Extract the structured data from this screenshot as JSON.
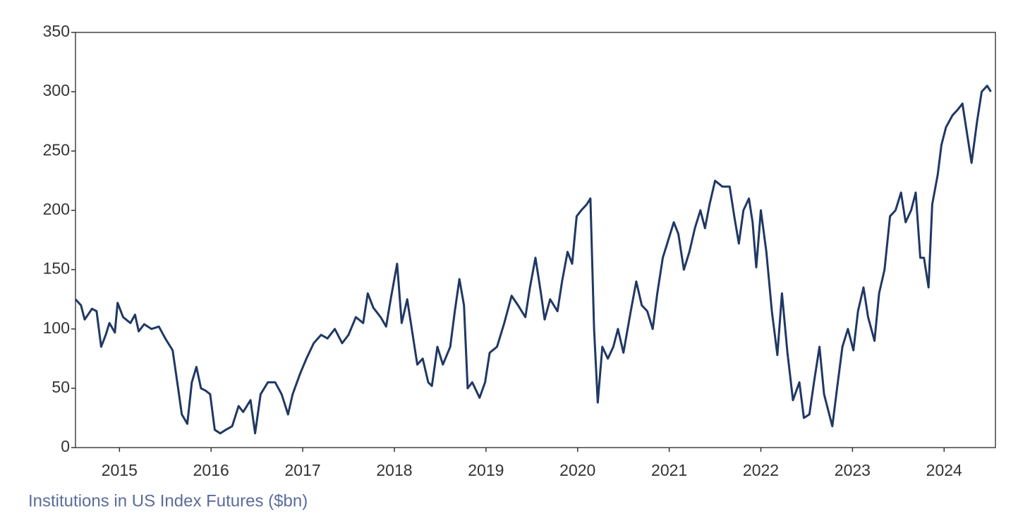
{
  "chart_data": {
    "type": "line",
    "xlabel": "Institutions in US Index Futures ($bn)",
    "x": [
      2014.52,
      2014.58,
      2014.62,
      2014.7,
      2014.75,
      2014.8,
      2014.85,
      2014.89,
      2014.95,
      2014.98,
      2015.04,
      2015.12,
      2015.17,
      2015.21,
      2015.27,
      2015.35,
      2015.43,
      2015.5,
      2015.58,
      2015.64,
      2015.68,
      2015.74,
      2015.79,
      2015.84,
      2015.89,
      2015.94,
      2015.99,
      2016.04,
      2016.1,
      2016.16,
      2016.23,
      2016.3,
      2016.35,
      2016.43,
      2016.48,
      2016.54,
      2016.62,
      2016.7,
      2016.77,
      2016.84,
      2016.89,
      2016.97,
      2017.04,
      2017.12,
      2017.2,
      2017.27,
      2017.35,
      2017.43,
      2017.5,
      2017.58,
      2017.66,
      2017.71,
      2017.77,
      2017.85,
      2017.91,
      2017.96,
      2018.03,
      2018.08,
      2018.14,
      2018.19,
      2018.25,
      2018.31,
      2018.37,
      2018.41,
      2018.47,
      2018.53,
      2018.61,
      2018.66,
      2018.71,
      2018.76,
      2018.8,
      2018.85,
      2018.93,
      2018.99,
      2019.04,
      2019.12,
      2019.2,
      2019.28,
      2019.35,
      2019.43,
      2019.48,
      2019.54,
      2019.6,
      2019.64,
      2019.7,
      2019.78,
      2019.83,
      2019.89,
      2019.94,
      2019.99,
      2020.04,
      2020.1,
      2020.14,
      2020.18,
      2020.22,
      2020.27,
      2020.33,
      2020.39,
      2020.44,
      2020.5,
      2020.58,
      2020.64,
      2020.7,
      2020.76,
      2020.82,
      2020.87,
      2020.93,
      2020.99,
      2021.05,
      2021.1,
      2021.16,
      2021.22,
      2021.28,
      2021.34,
      2021.39,
      2021.44,
      2021.5,
      2021.58,
      2021.66,
      2021.71,
      2021.76,
      2021.81,
      2021.87,
      2021.91,
      2021.95,
      2022.0,
      2022.06,
      2022.12,
      2022.18,
      2022.23,
      2022.29,
      2022.35,
      2022.42,
      2022.47,
      2022.53,
      2022.58,
      2022.64,
      2022.69,
      2022.74,
      2022.78,
      2022.84,
      2022.89,
      2022.95,
      2023.01,
      2023.06,
      2023.12,
      2023.17,
      2023.24,
      2023.29,
      2023.35,
      2023.41,
      2023.47,
      2023.53,
      2023.58,
      2023.64,
      2023.69,
      2023.74,
      2023.78,
      2023.83,
      2023.87,
      2023.93,
      2023.97,
      2024.02,
      2024.09,
      2024.15,
      2024.2,
      2024.26,
      2024.3,
      2024.36,
      2024.41,
      2024.47,
      2024.51
    ],
    "series": [
      {
        "color": "#1f3864",
        "values": [
          125,
          120,
          108,
          117,
          115,
          85,
          95,
          105,
          97,
          122,
          110,
          105,
          112,
          98,
          104,
          100,
          102,
          92,
          82,
          50,
          28,
          20,
          55,
          68,
          50,
          48,
          45,
          15,
          12,
          15,
          18,
          35,
          30,
          40,
          12,
          45,
          55,
          55,
          45,
          28,
          45,
          62,
          75,
          88,
          95,
          92,
          100,
          88,
          95,
          110,
          105,
          130,
          118,
          110,
          102,
          125,
          155,
          105,
          125,
          100,
          70,
          75,
          55,
          52,
          85,
          70,
          85,
          115,
          142,
          120,
          50,
          55,
          42,
          55,
          80,
          85,
          105,
          128,
          120,
          110,
          135,
          160,
          130,
          108,
          125,
          115,
          140,
          165,
          155,
          195,
          200,
          205,
          210,
          100,
          38,
          85,
          75,
          85,
          100,
          80,
          115,
          140,
          120,
          115,
          100,
          130,
          160,
          175,
          190,
          180,
          150,
          165,
          185,
          200,
          185,
          205,
          225,
          220,
          220,
          195,
          172,
          200,
          210,
          190,
          152,
          200,
          165,
          115,
          78,
          130,
          80,
          40,
          55,
          25,
          28,
          55,
          85,
          45,
          30,
          18,
          55,
          85,
          100,
          82,
          115,
          135,
          110,
          90,
          130,
          150,
          195,
          200,
          215,
          190,
          200,
          215,
          160,
          160,
          135,
          205,
          230,
          255,
          270,
          280,
          285,
          290,
          260,
          240,
          275,
          300,
          305,
          300
        ]
      }
    ],
    "xlim": [
      2014.52,
      2024.56
    ],
    "xticks": [
      2015,
      2016,
      2017,
      2018,
      2019,
      2020,
      2021,
      2022,
      2023,
      2024
    ],
    "ylim": [
      0,
      350
    ],
    "yticks": [
      0,
      50,
      100,
      150,
      200,
      250,
      300,
      350
    ]
  }
}
